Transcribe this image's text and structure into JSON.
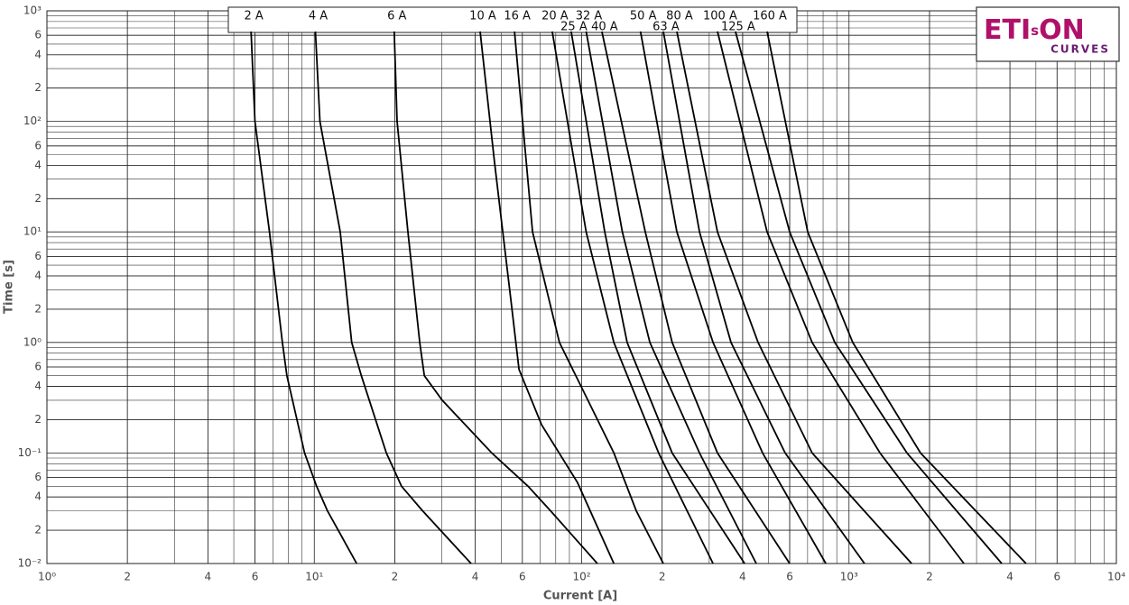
{
  "chart_data": {
    "type": "line",
    "x_label": "Current [A]",
    "y_label": "Time [s]",
    "xlog": true,
    "ylog": true,
    "grid": true,
    "xlim": [
      1,
      10000
    ],
    "ylim": [
      0.01,
      1000
    ],
    "xticks": [
      {
        "value": 1,
        "label": "10⁰"
      },
      2,
      4,
      6,
      {
        "value": 10,
        "label": "10¹"
      },
      {
        "value": 20,
        "label": "2"
      },
      {
        "value": 40,
        "label": "4"
      },
      {
        "value": 60,
        "label": "6"
      },
      {
        "value": 100,
        "label": "10²"
      },
      {
        "value": 200,
        "label": "2"
      },
      {
        "value": 400,
        "label": "4"
      },
      {
        "value": 600,
        "label": "6"
      },
      {
        "value": 1000,
        "label": "10³"
      },
      {
        "value": 2000,
        "label": "2"
      },
      {
        "value": 4000,
        "label": "4"
      },
      {
        "value": 6000,
        "label": "6"
      },
      {
        "value": 10000,
        "label": "10⁴"
      }
    ],
    "yticks": [
      {
        "value": 0.01,
        "label": "10⁻²"
      },
      {
        "value": 0.02,
        "label": "2"
      },
      {
        "value": 0.04,
        "label": "4"
      },
      {
        "value": 0.06,
        "label": "6"
      },
      {
        "value": 0.1,
        "label": "10⁻¹"
      },
      {
        "value": 0.2,
        "label": "2"
      },
      {
        "value": 0.4,
        "label": "4"
      },
      {
        "value": 0.6,
        "label": "6"
      },
      {
        "value": 1,
        "label": "10⁰"
      },
      2,
      4,
      6,
      {
        "value": 10,
        "label": "10¹"
      },
      {
        "value": 20,
        "label": "2"
      },
      {
        "value": 40,
        "label": "4"
      },
      {
        "value": 60,
        "label": "6"
      },
      {
        "value": 100,
        "label": "10²"
      },
      {
        "value": 200,
        "label": "2"
      },
      {
        "value": 400,
        "label": "4"
      },
      {
        "value": 600,
        "label": "6"
      },
      {
        "value": 1000,
        "label": "10³"
      }
    ],
    "series": [
      {
        "name": "2 A",
        "color": "#000000",
        "x": [
          5.8,
          6.0,
          6.8,
          7.6,
          7.9,
          9.2,
          10.2,
          11.2,
          14.4
        ],
        "values": [
          650,
          100,
          10,
          1,
          0.5,
          0.1,
          0.05,
          0.03,
          0.01
        ]
      },
      {
        "name": "4 A",
        "color": "#000000",
        "x": [
          10.1,
          10.5,
          12.5,
          13.8,
          15.0,
          18.6,
          21.2,
          25.4,
          38.6
        ],
        "values": [
          650,
          100,
          10,
          1,
          0.5,
          0.1,
          0.05,
          0.03,
          0.01
        ]
      },
      {
        "name": "6 A",
        "color": "#000000",
        "x": [
          19.9,
          20.4,
          22.4,
          24.8,
          25.8,
          30.1,
          46.1,
          63,
          76.5,
          114.5
        ],
        "values": [
          650,
          100,
          10,
          1,
          0.5,
          0.3,
          0.1,
          0.05,
          0.03,
          0.01
        ]
      },
      {
        "name": "10 A",
        "color": "#000000",
        "x": [
          41.7,
          47.2,
          50.7,
          54.3,
          58.3,
          70.8,
          96.5,
          132
        ],
        "values": [
          650,
          43,
          10,
          2.5,
          0.57,
          0.18,
          0.054,
          0.01
        ]
      },
      {
        "name": "16 A",
        "color": "#000000",
        "x": [
          56.1,
          65.5,
          82.6,
          132,
          160,
          202
        ],
        "values": [
          650,
          10,
          1,
          0.1,
          0.03,
          0.01
        ]
      },
      {
        "name": "20 A",
        "color": "#000000",
        "x": [
          77.6,
          104,
          132,
          194,
          310
        ],
        "values": [
          650,
          10,
          1,
          0.1,
          0.01
        ]
      },
      {
        "name": "25 A",
        "color": "#000000",
        "x": [
          91.4,
          122,
          148,
          218,
          407
        ],
        "values": [
          650,
          10,
          1,
          0.1,
          0.01
        ]
      },
      {
        "name": "32 A",
        "color": "#000000",
        "x": [
          104,
          142,
          180,
          276,
          450
        ],
        "values": [
          650,
          10,
          1,
          0.1,
          0.01
        ]
      },
      {
        "name": "40 A",
        "color": "#000000",
        "x": [
          119,
          173,
          218,
          322,
          600
        ],
        "values": [
          650,
          10,
          1,
          0.1,
          0.01
        ]
      },
      {
        "name": "50 A",
        "color": "#000000",
        "x": [
          166,
          227,
          310,
          475,
          819
        ],
        "values": [
          650,
          10,
          1,
          0.1,
          0.01
        ]
      },
      {
        "name": "63 A",
        "color": "#000000",
        "x": [
          202,
          276,
          362,
          577,
          1143
        ],
        "values": [
          650,
          10,
          1,
          0.1,
          0.01
        ]
      },
      {
        "name": "80 A",
        "color": "#000000",
        "x": [
          227,
          322,
          457,
          728,
          1714
        ],
        "values": [
          650,
          10,
          1,
          0.1,
          0.01
        ]
      },
      {
        "name": "100 A",
        "color": "#000000",
        "x": [
          322,
          494,
          728,
          1306,
          2691
        ],
        "values": [
          650,
          10,
          1,
          0.1,
          0.01
        ]
      },
      {
        "name": "125 A",
        "color": "#000000",
        "x": [
          376,
          600,
          885,
          1648,
          3726
        ],
        "values": [
          650,
          10,
          1,
          0.1,
          0.01
        ]
      },
      {
        "name": "160 A",
        "color": "#000000",
        "x": [
          494,
          701,
          1033,
          1852,
          4594
        ],
        "values": [
          650,
          10,
          1,
          0.1,
          0.01
        ]
      }
    ]
  },
  "logo": {
    "part1": "ETI",
    "part2": "s",
    "part3": "ON",
    "tagline": "CURVES"
  }
}
